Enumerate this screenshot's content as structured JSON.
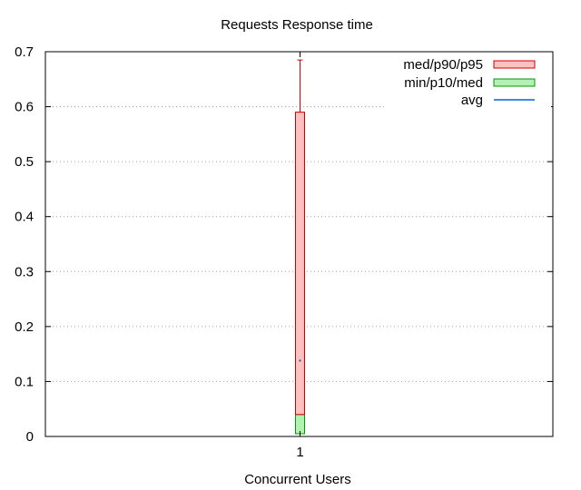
{
  "chart_data": {
    "type": "box",
    "title": "Requests Response time",
    "xlabel": "Concurrent Users",
    "ylabel": "",
    "x_ticks": [
      "1"
    ],
    "y_ticks": [
      "0",
      "0.1",
      "0.2",
      "0.3",
      "0.4",
      "0.5",
      "0.6",
      "0.7"
    ],
    "ylim": [
      0,
      0.7
    ],
    "grid": "horizontal dotted",
    "legend_position": "top-right",
    "series": [
      {
        "x": "1",
        "min": 0.005,
        "p10": 0.005,
        "med": 0.04,
        "p90": 0.59,
        "p95": 0.685,
        "avg": 0.138
      }
    ],
    "legend": [
      {
        "label": "med/p90/p95",
        "fill": "#ffc0c0",
        "stroke": "#cc0000",
        "kind": "box"
      },
      {
        "label": "min/p10/med",
        "fill": "#b3f0b3",
        "stroke": "#009900",
        "kind": "box"
      },
      {
        "label": "avg",
        "stroke": "#0060e0",
        "kind": "line"
      }
    ],
    "colors": {
      "upper_fill": "#ffc0c0",
      "upper_stroke": "#cc0000",
      "lower_fill": "#b3f0b3",
      "lower_stroke": "#009900",
      "avg": "#0060e0",
      "grid": "#a0a0a0"
    }
  }
}
